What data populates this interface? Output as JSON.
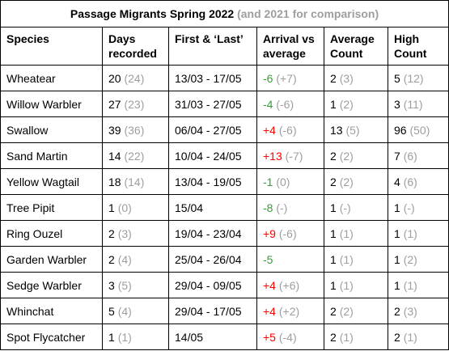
{
  "title": "Passage Migrants Spring 2022",
  "subtitle": "(and 2021 for comparison)",
  "headers": [
    "Species",
    "Days recorded",
    "First & ‘Last’",
    "Arrival vs average",
    "Average Count",
    "High Count"
  ],
  "colors": {
    "early": "#3b9a3b",
    "late": "#ff0000",
    "comparison": "#9e9e9e"
  },
  "rows": [
    {
      "species": "Wheatear",
      "days": "20",
      "days_prev": "(24)",
      "dates": "13/03 - 17/05",
      "arrival": "-6",
      "arrival_class": "green",
      "arrival_prev": "(+7)",
      "avg": "2",
      "avg_prev": "(3)",
      "high": "5",
      "high_prev": "(12)"
    },
    {
      "species": "Willow Warbler",
      "days": "27",
      "days_prev": "(23)",
      "dates": "31/03 - 27/05",
      "arrival": "-4",
      "arrival_class": "green",
      "arrival_prev": "(-6)",
      "avg": "1",
      "avg_prev": "(2)",
      "high": "3",
      "high_prev": "(11)"
    },
    {
      "species": "Swallow",
      "days": "39",
      "days_prev": "(36)",
      "dates": "06/04 - 27/05",
      "arrival": "+4",
      "arrival_class": "red",
      "arrival_prev": "(-6)",
      "avg": "13",
      "avg_prev": "(5)",
      "high": "96",
      "high_prev": "(50)"
    },
    {
      "species": "Sand Martin",
      "days": "14",
      "days_prev": "(22)",
      "dates": "10/04 - 24/05",
      "arrival": "+13",
      "arrival_class": "red",
      "arrival_prev": "(-7)",
      "avg": "2",
      "avg_prev": "(2)",
      "high": "7",
      "high_prev": "(6)"
    },
    {
      "species": "Yellow Wagtail",
      "days": "18",
      "days_prev": "(14)",
      "dates": "13/04 - 19/05",
      "arrival": "-1",
      "arrival_class": "green",
      "arrival_prev": "(0)",
      "avg": "2",
      "avg_prev": "(2)",
      "high": "4",
      "high_prev": "(6)"
    },
    {
      "species": "Tree Pipit",
      "days": "1",
      "days_prev": "(0)",
      "dates": "15/04",
      "arrival": "-8",
      "arrival_class": "green",
      "arrival_prev": "(-)",
      "avg": "1",
      "avg_prev": "(-)",
      "high": "1",
      "high_prev": "(-)"
    },
    {
      "species": "Ring Ouzel",
      "days": "2",
      "days_prev": "(3)",
      "dates": "19/04 - 23/04",
      "arrival": "+9",
      "arrival_class": "red",
      "arrival_prev": "(-6)",
      "avg": "1",
      "avg_prev": "(1)",
      "high": "1",
      "high_prev": "(1)"
    },
    {
      "species": "Garden Warbler",
      "days": "2",
      "days_prev": "(4)",
      "dates": "25/04 - 26/04",
      "arrival": "-5",
      "arrival_class": "green",
      "arrival_prev": "",
      "avg": "1",
      "avg_prev": "(1)",
      "high": "1",
      "high_prev": "(2)"
    },
    {
      "species": "Sedge Warbler",
      "days": "3",
      "days_prev": "(5)",
      "dates": "29/04 - 09/05",
      "arrival": "+4",
      "arrival_class": "red",
      "arrival_prev": "(+6)",
      "avg": "1",
      "avg_prev": "(1)",
      "high": "1",
      "high_prev": "(1)"
    },
    {
      "species": "Whinchat",
      "days": "5",
      "days_prev": "(4)",
      "dates": "29/04 - 17/05",
      "arrival": "+4",
      "arrival_class": "red",
      "arrival_prev": "(+2)",
      "avg": "2",
      "avg_prev": "(2)",
      "high": "2",
      "high_prev": "(3)"
    },
    {
      "species": "Spot Flycatcher",
      "days": "1",
      "days_prev": "(1)",
      "dates": "14/05",
      "arrival": "+5",
      "arrival_class": "red",
      "arrival_prev": "(-4)",
      "avg": "2",
      "avg_prev": "(1)",
      "high": "2",
      "high_prev": "(1)"
    }
  ]
}
